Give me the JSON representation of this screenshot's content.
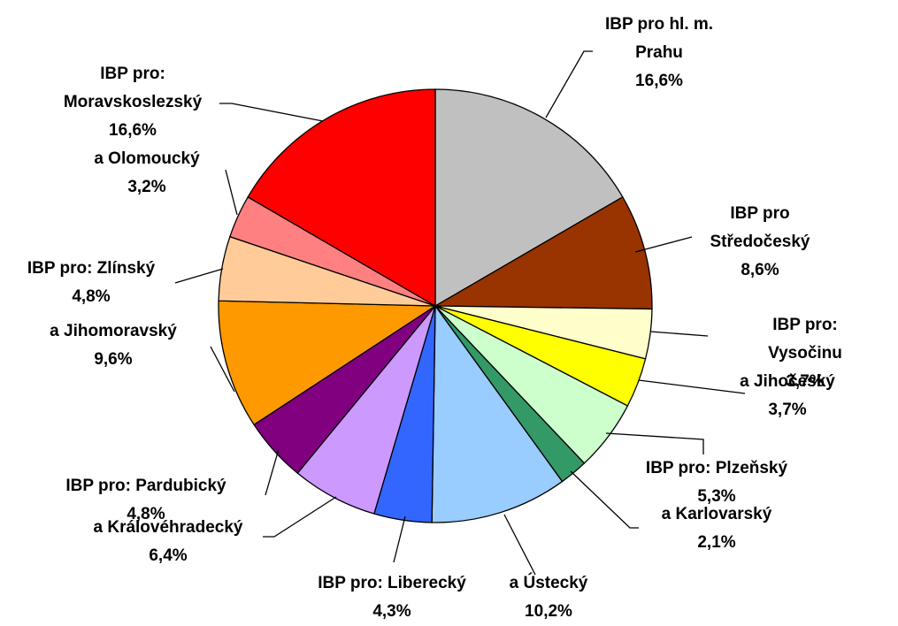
{
  "chart_data": {
    "type": "pie",
    "categories": [
      "IBP pro hl. m.\nPrahu",
      "IBP pro\nStředočeský",
      "IBP pro: Vysočinu",
      "a Jihočeský",
      "IBP pro: Plzeňský",
      "a Karlovarský",
      "a Ústecký",
      "IBP pro: Liberecký",
      "a Královéhradecký",
      "IBP pro: Pardubický",
      "a Jihomoravský",
      "IBP pro: Zlínský",
      "a Olomoucký",
      "IBP pro:\nMoravskoslezský"
    ],
    "values": [
      16.6,
      8.6,
      3.7,
      3.7,
      5.3,
      2.1,
      10.2,
      4.3,
      6.4,
      4.8,
      9.6,
      4.8,
      3.2,
      16.6
    ],
    "value_labels": [
      "16,6%",
      "8,6%",
      "3,7%",
      "3,7%",
      "5,3%",
      "2,1%",
      "10,2%",
      "4,3%",
      "6,4%",
      "4,8%",
      "9,6%",
      "4,8%",
      "3,2%",
      "16,6%"
    ],
    "colors": [
      "#c0c0c0",
      "#993300",
      "#ffffcc",
      "#ffff00",
      "#ccffcc",
      "#339966",
      "#99ccff",
      "#3366ff",
      "#cc99ff",
      "#800080",
      "#ff9900",
      "#ffcc99",
      "#ff8080",
      "#ff0000"
    ]
  }
}
